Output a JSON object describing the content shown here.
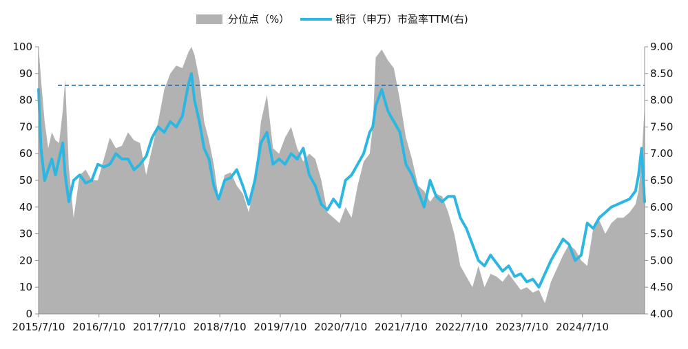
{
  "chart_data": {
    "type": "area+line",
    "legend": {
      "placement": "top-center",
      "items": [
        {
          "key": "percentile",
          "label": "分位点（%）",
          "marker": "area",
          "color": "#b2b2b2"
        },
        {
          "key": "pe",
          "label": "银行（申万）市盈率TTM(右)",
          "marker": "line",
          "color": "#2bb7e2"
        }
      ]
    },
    "x_tick_labels": [
      "2015/7/10",
      "2016/7/10",
      "2017/7/10",
      "2018/7/10",
      "2019/7/10",
      "2020/7/10",
      "2021/7/10",
      "2022/7/10",
      "2023/7/10",
      "2024/7/10"
    ],
    "x_range": [
      2015.52,
      2025.55
    ],
    "y_left": {
      "min": 0,
      "max": 100,
      "ticks": [
        "0",
        "10",
        "20",
        "30",
        "40",
        "50",
        "60",
        "70",
        "80",
        "90",
        "100"
      ]
    },
    "y_right": {
      "min": 4.0,
      "max": 9.0,
      "ticks": [
        "4.00",
        "4.50",
        "5.00",
        "5.50",
        "6.00",
        "6.50",
        "7.00",
        "7.50",
        "8.00",
        "8.50",
        "9.00"
      ]
    },
    "reference_line": {
      "axis": "right",
      "value": 8.28,
      "style": "dashed",
      "color": "#1f6fb5"
    },
    "series": [
      {
        "key": "percentile",
        "type": "area",
        "axis": "left",
        "color": "#b2b2b2",
        "x": [
          2015.52,
          2015.56,
          2015.62,
          2015.68,
          2015.74,
          2015.8,
          2015.86,
          2015.92,
          2015.96,
          2016.02,
          2016.1,
          2016.2,
          2016.3,
          2016.4,
          2016.5,
          2016.6,
          2016.7,
          2016.8,
          2016.9,
          2017.0,
          2017.1,
          2017.2,
          2017.3,
          2017.4,
          2017.5,
          2017.6,
          2017.7,
          2017.8,
          2017.9,
          2018.0,
          2018.05,
          2018.1,
          2018.18,
          2018.26,
          2018.34,
          2018.42,
          2018.5,
          2018.6,
          2018.7,
          2018.8,
          2018.9,
          2019.0,
          2019.1,
          2019.2,
          2019.3,
          2019.4,
          2019.5,
          2019.6,
          2019.7,
          2019.8,
          2019.9,
          2020.0,
          2020.1,
          2020.2,
          2020.3,
          2020.4,
          2020.5,
          2020.6,
          2020.7,
          2020.8,
          2020.9,
          2021.0,
          2021.05,
          2021.1,
          2021.2,
          2021.3,
          2021.4,
          2021.5,
          2021.6,
          2021.7,
          2021.8,
          2021.9,
          2022.0,
          2022.1,
          2022.2,
          2022.3,
          2022.4,
          2022.5,
          2022.6,
          2022.7,
          2022.8,
          2022.9,
          2023.0,
          2023.1,
          2023.2,
          2023.3,
          2023.4,
          2023.5,
          2023.6,
          2023.7,
          2023.8,
          2023.9,
          2024.0,
          2024.1,
          2024.2,
          2024.3,
          2024.4,
          2024.5,
          2024.6,
          2024.7,
          2024.8,
          2024.9,
          2025.0,
          2025.1,
          2025.2,
          2025.3,
          2025.4,
          2025.45,
          2025.5,
          2025.55
        ],
        "values": [
          100,
          88,
          72,
          62,
          68,
          65,
          64,
          76,
          88,
          55,
          36,
          52,
          54,
          50,
          50,
          58,
          66,
          62,
          63,
          68,
          65,
          64,
          52,
          62,
          72,
          84,
          90,
          93,
          92,
          98,
          100,
          97,
          88,
          72,
          65,
          56,
          43,
          52,
          53,
          48,
          45,
          38,
          50,
          72,
          82,
          62,
          60,
          66,
          70,
          62,
          57,
          60,
          58,
          50,
          38,
          36,
          34,
          40,
          36,
          48,
          57,
          60,
          70,
          96,
          99,
          95,
          92,
          80,
          66,
          58,
          48,
          46,
          42,
          45,
          44,
          38,
          30,
          18,
          14,
          10,
          18,
          10,
          15,
          14,
          12,
          15,
          12,
          9,
          10,
          8,
          9,
          4,
          12,
          17,
          22,
          26,
          24,
          20,
          18,
          32,
          35,
          30,
          34,
          36,
          36,
          38,
          41,
          46,
          58,
          78
        ]
      },
      {
        "key": "pe",
        "type": "line",
        "axis": "right",
        "color": "#2bb7e2",
        "x": [
          2015.52,
          2015.56,
          2015.62,
          2015.68,
          2015.74,
          2015.8,
          2015.86,
          2015.92,
          2015.96,
          2016.02,
          2016.1,
          2016.2,
          2016.3,
          2016.4,
          2016.5,
          2016.6,
          2016.7,
          2016.8,
          2016.9,
          2017.0,
          2017.1,
          2017.2,
          2017.3,
          2017.4,
          2017.5,
          2017.6,
          2017.7,
          2017.8,
          2017.9,
          2018.0,
          2018.05,
          2018.1,
          2018.18,
          2018.26,
          2018.34,
          2018.42,
          2018.5,
          2018.6,
          2018.7,
          2018.8,
          2018.9,
          2019.0,
          2019.1,
          2019.2,
          2019.3,
          2019.4,
          2019.5,
          2019.6,
          2019.7,
          2019.8,
          2019.9,
          2020.0,
          2020.1,
          2020.2,
          2020.3,
          2020.4,
          2020.5,
          2020.6,
          2020.7,
          2020.8,
          2020.9,
          2021.0,
          2021.05,
          2021.1,
          2021.2,
          2021.3,
          2021.4,
          2021.5,
          2021.6,
          2021.7,
          2021.8,
          2021.9,
          2022.0,
          2022.1,
          2022.2,
          2022.3,
          2022.4,
          2022.5,
          2022.6,
          2022.7,
          2022.8,
          2022.9,
          2023.0,
          2023.1,
          2023.2,
          2023.3,
          2023.4,
          2023.5,
          2023.6,
          2023.7,
          2023.8,
          2023.9,
          2024.0,
          2024.1,
          2024.2,
          2024.3,
          2024.4,
          2024.5,
          2024.6,
          2024.7,
          2024.8,
          2024.9,
          2025.0,
          2025.1,
          2025.2,
          2025.3,
          2025.4,
          2025.45,
          2025.5,
          2025.55
        ],
        "values": [
          8.2,
          7.1,
          6.5,
          6.7,
          6.9,
          6.6,
          6.9,
          7.2,
          6.6,
          6.1,
          6.5,
          6.6,
          6.45,
          6.5,
          6.8,
          6.75,
          6.8,
          7.0,
          6.9,
          6.9,
          6.7,
          6.8,
          6.95,
          7.3,
          7.5,
          7.4,
          7.6,
          7.5,
          7.7,
          8.3,
          8.5,
          8.0,
          7.6,
          7.1,
          6.9,
          6.4,
          6.15,
          6.5,
          6.55,
          6.7,
          6.4,
          6.05,
          6.5,
          7.2,
          7.4,
          6.8,
          6.9,
          6.8,
          7.0,
          6.9,
          7.1,
          6.6,
          6.4,
          6.05,
          5.95,
          6.15,
          6.0,
          6.5,
          6.6,
          6.8,
          7.0,
          7.4,
          7.5,
          7.9,
          8.2,
          7.8,
          7.6,
          7.4,
          6.8,
          6.6,
          6.3,
          6.0,
          6.5,
          6.2,
          6.1,
          6.2,
          6.2,
          5.8,
          5.6,
          5.3,
          5.0,
          4.9,
          5.1,
          4.95,
          4.8,
          4.9,
          4.7,
          4.75,
          4.6,
          4.65,
          4.5,
          4.75,
          5.0,
          5.2,
          5.4,
          5.3,
          5.0,
          5.1,
          5.7,
          5.6,
          5.8,
          5.9,
          6.0,
          6.05,
          6.1,
          6.15,
          6.3,
          6.6,
          7.1,
          6.1
        ]
      }
    ]
  }
}
